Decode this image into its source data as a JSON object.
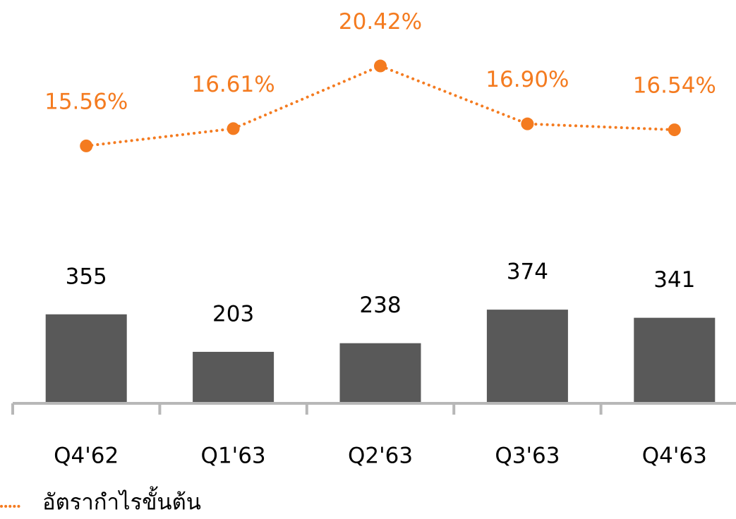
{
  "chart_data": {
    "type": "bar",
    "categories": [
      "Q4'62",
      "Q1'63",
      "Q2'63",
      "Q3'63",
      "Q4'63"
    ],
    "ylim": [
      0,
      1600
    ],
    "y2lim": [
      0,
      24
    ],
    "series": [
      {
        "type": "bar",
        "color": "#595959",
        "values": [
          355,
          203,
          238,
          374,
          341
        ]
      },
      {
        "type": "line",
        "axis": "y2",
        "name": "อัตรากำไรขั้นต้น",
        "color": "#f47b20",
        "values": [
          15.56,
          16.61,
          20.42,
          16.9,
          16.54
        ],
        "value_labels": [
          "15.56%",
          "16.61%",
          "20.42%",
          "16.90%",
          "16.54%"
        ]
      }
    ]
  }
}
